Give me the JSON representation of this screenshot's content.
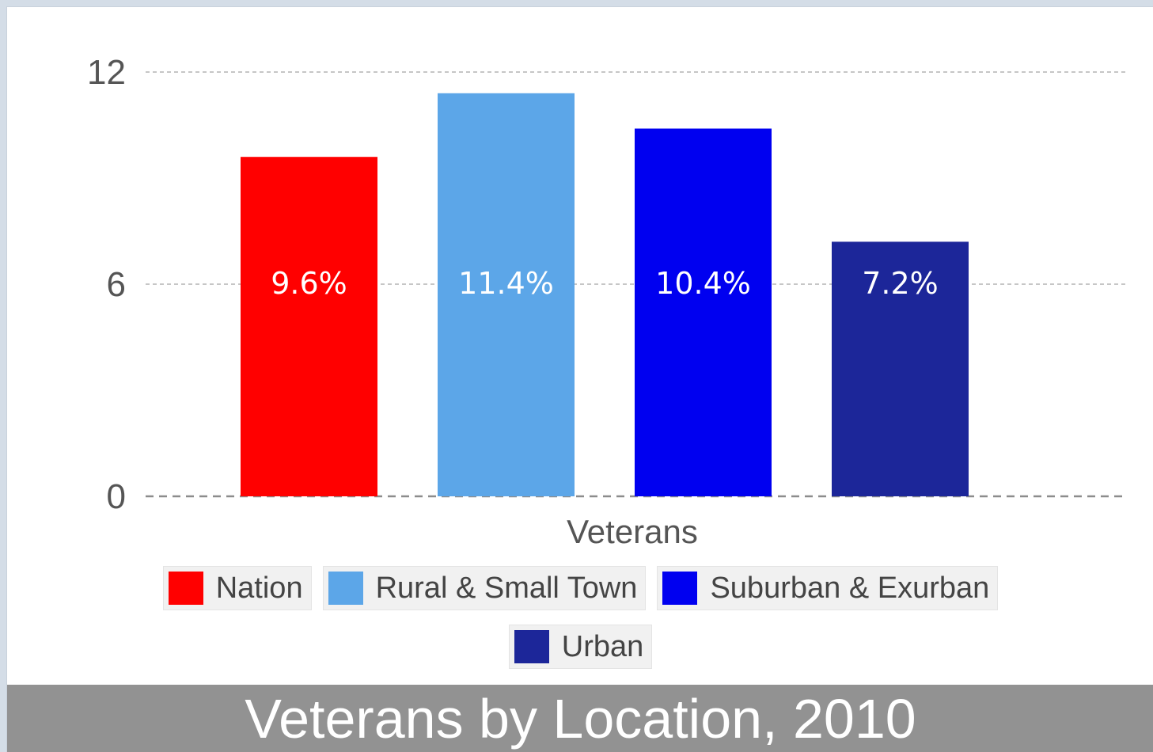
{
  "chart_data": {
    "type": "bar",
    "title": "Veterans by Location, 2010",
    "xlabel": "Veterans",
    "ylabel": "",
    "ylim": [
      0,
      12
    ],
    "yticks": [
      "0",
      "6",
      "12"
    ],
    "grid": true,
    "legend_position": "bottom",
    "categories": [
      "Veterans"
    ],
    "series": [
      {
        "name": "Nation",
        "value": 9.6,
        "label": "9.6%",
        "color": "#ff0000"
      },
      {
        "name": "Rural & Small Town",
        "value": 11.4,
        "label": "11.4%",
        "color": "#5ca6e8"
      },
      {
        "name": "Suburban & Exurban",
        "value": 10.4,
        "label": "10.4%",
        "color": "#0000f0"
      },
      {
        "name": "Urban",
        "value": 7.2,
        "label": "7.2%",
        "color": "#1c2699"
      }
    ]
  }
}
